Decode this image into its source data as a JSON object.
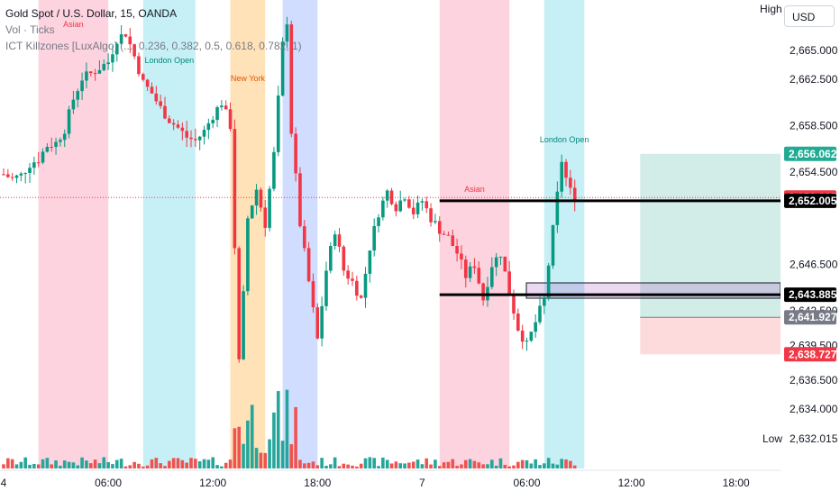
{
  "legend": {
    "symbol": "Gold Spot / U.S. Dollar, 15, OANDA",
    "vol": "Vol · Ticks",
    "indicator": "ICT Killzones [LuxAlgo] (..., 0.236, 0.382, 0.5, 0.618, 0.782, 1)"
  },
  "header": {
    "high_label": "High",
    "currency": "USD"
  },
  "low": {
    "label": "Low",
    "value": "2,632.015"
  },
  "price_axis": {
    "ticks": [
      "2,665.000",
      "2,662.500",
      "2,658.500",
      "2,654.500",
      "2,646.500",
      "2,642.500",
      "2,639.500",
      "2,636.500",
      "2,634.000"
    ],
    "tick_values": [
      2665.0,
      2662.5,
      2658.5,
      2654.5,
      2646.5,
      2642.5,
      2639.5,
      2636.5,
      2634.0
    ],
    "badges": [
      {
        "text": "2,656.062",
        "value": 2656.062,
        "color": "#22ab94",
        "fg": "#ffffff"
      },
      {
        "text": "2,652.285",
        "value": 2652.285,
        "color": "#f23645",
        "fg": "#ffffff"
      },
      {
        "text": "2,652.005",
        "value": 2652.005,
        "color": "#000000",
        "fg": "#ffffff"
      },
      {
        "text": "2,643.885",
        "value": 2643.885,
        "color": "#000000",
        "fg": "#ffffff"
      },
      {
        "text": "2,641.927",
        "value": 2641.927,
        "color": "#787b86",
        "fg": "#ffffff"
      },
      {
        "text": "2,638.727",
        "value": 2638.727,
        "color": "#f23645",
        "fg": "#ffffff"
      }
    ]
  },
  "time_axis": {
    "labels": [
      "4",
      "06:00",
      "12:00",
      "18:00",
      "7",
      "06:00",
      "12:00",
      "18:00"
    ]
  },
  "killzones": [
    {
      "label": "Asian",
      "color": "pink",
      "start": 2,
      "end": 6
    },
    {
      "label": "London Open",
      "color": "cyan",
      "start": 8,
      "end": 11
    },
    {
      "label": "New York",
      "color": "orange",
      "start": 13,
      "end": 15
    },
    {
      "label": "",
      "color": "blue",
      "start": 16,
      "end": 18
    },
    {
      "label": "Asian",
      "color": "pink",
      "start": 25,
      "end": 29
    },
    {
      "label": "London Open",
      "color": "cyan",
      "start": 31,
      "end": 33.3
    }
  ],
  "levels": [
    {
      "price": 2652.005,
      "from": 25,
      "to": 44.6
    },
    {
      "price": 2643.885,
      "from": 25,
      "to": 44.6
    }
  ],
  "position_tool": {
    "entry": 2641.927,
    "target": 2656.062,
    "stop": 2638.727,
    "from": 36.5,
    "to": 44.6
  },
  "colors": {
    "up": "#089981",
    "down": "#f23645",
    "vol_up": "#26a69a",
    "vol_down": "#ef5350"
  },
  "chart_data": {
    "type": "candlestick",
    "title": "Gold Spot / U.S. Dollar, 15, OANDA",
    "x_unit": "hours since 00:00 on the 4th",
    "y_unit": "USD",
    "ylim": [
      2631.0,
      2668.0
    ],
    "xlim": [
      0,
      46
    ],
    "close_path": [
      [
        0,
        2654.3
      ],
      [
        0.5,
        2653.9
      ],
      [
        1,
        2654.2
      ],
      [
        1.5,
        2655.2
      ],
      [
        2,
        2655.6
      ],
      [
        2.5,
        2656.8
      ],
      [
        3,
        2657.0
      ],
      [
        3.5,
        2658.2
      ],
      [
        4,
        2660.8
      ],
      [
        4.5,
        2662.6
      ],
      [
        5,
        2663.0
      ],
      [
        5.5,
        2663.5
      ],
      [
        6,
        2664.0
      ],
      [
        6.5,
        2666.0
      ],
      [
        7,
        2666.5
      ],
      [
        7.5,
        2664.5
      ],
      [
        8,
        2662.2
      ],
      [
        8.5,
        2661.3
      ],
      [
        9,
        2660.0
      ],
      [
        9.5,
        2659.0
      ],
      [
        10,
        2658.3
      ],
      [
        10.5,
        2657.5
      ],
      [
        11,
        2657.2
      ],
      [
        11.5,
        2658.0
      ],
      [
        12,
        2659.4
      ],
      [
        12.5,
        2660.5
      ],
      [
        13,
        2658.5
      ],
      [
        13.3,
        2646.0
      ],
      [
        13.5,
        2638.0
      ],
      [
        13.8,
        2645.0
      ],
      [
        14,
        2650.5
      ],
      [
        14.5,
        2653.0
      ],
      [
        15,
        2650.0
      ],
      [
        15.5,
        2656.0
      ],
      [
        16,
        2665.5
      ],
      [
        16.3,
        2668.0
      ],
      [
        16.5,
        2658.0
      ],
      [
        17,
        2650.0
      ],
      [
        17.5,
        2645.0
      ],
      [
        18,
        2640.0
      ],
      [
        18.5,
        2646.0
      ],
      [
        19,
        2649.5
      ],
      [
        19.5,
        2646.0
      ],
      [
        20,
        2645.0
      ],
      [
        20.5,
        2643.5
      ],
      [
        21,
        2648.0
      ],
      [
        21.5,
        2651.0
      ],
      [
        22,
        2652.8
      ],
      [
        22.5,
        2651.5
      ],
      [
        23,
        2652.5
      ],
      [
        23.5,
        2651.0
      ],
      [
        24,
        2652.0
      ],
      [
        24.5,
        2650.5
      ],
      [
        25,
        2649.5
      ],
      [
        25.5,
        2648.8
      ],
      [
        26,
        2647.5
      ],
      [
        26.5,
        2645.5
      ],
      [
        27,
        2646.5
      ],
      [
        27.5,
        2643.5
      ],
      [
        28,
        2646.5
      ],
      [
        28.5,
        2647.5
      ],
      [
        29,
        2644.0
      ],
      [
        29.5,
        2641.0
      ],
      [
        30,
        2639.5
      ],
      [
        30.5,
        2641.5
      ],
      [
        31,
        2643.5
      ],
      [
        31.5,
        2649.5
      ],
      [
        32,
        2655.5
      ],
      [
        32.4,
        2653.0
      ],
      [
        32.8,
        2652.3
      ]
    ],
    "volume_scale": [
      0,
      1
    ]
  }
}
